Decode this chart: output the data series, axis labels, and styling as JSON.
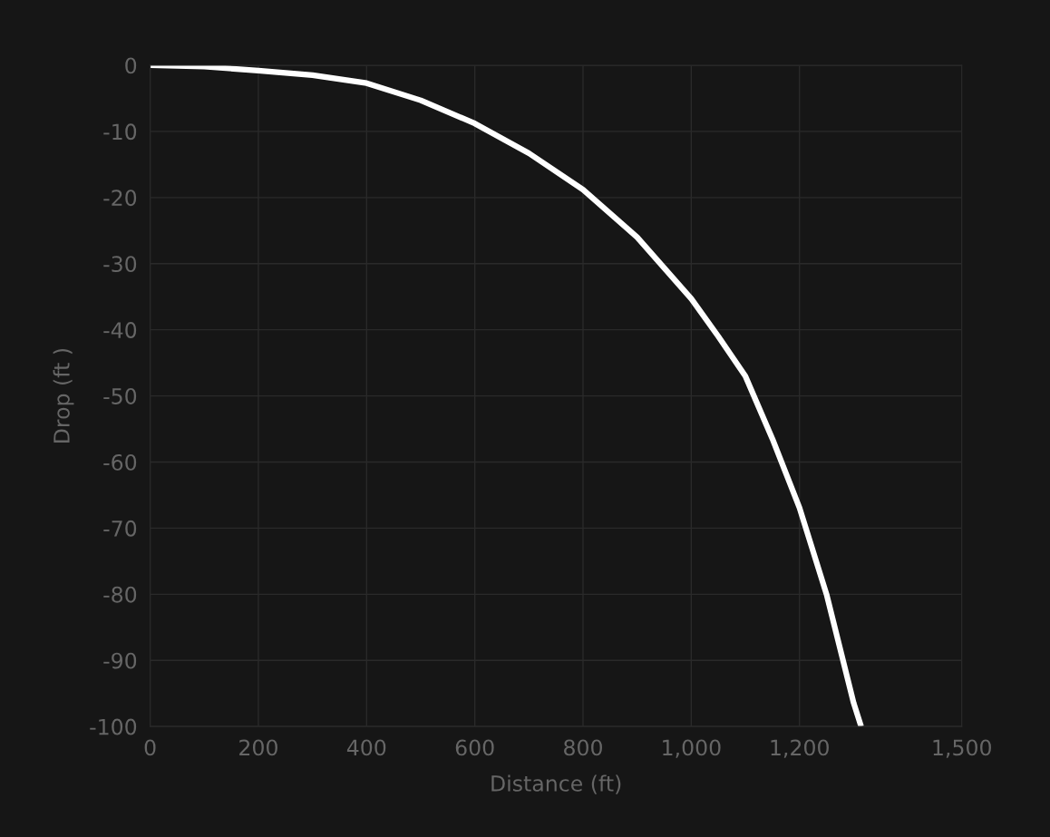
{
  "chart_data": {
    "type": "line",
    "xlabel": "Distance (ft)",
    "ylabel": "Drop (ft )",
    "x": [
      0,
      100,
      200,
      300,
      400,
      500,
      600,
      700,
      800,
      900,
      1000,
      1050,
      1100,
      1150,
      1200,
      1250,
      1300,
      1314
    ],
    "series": [
      {
        "color": "#ffffff",
        "values": [
          0,
          -0.2,
          -0.8,
          -1.5,
          -2.7,
          -5.3,
          -8.8,
          -13.3,
          -18.8,
          -26,
          -35.3,
          -41,
          -47,
          -56.5,
          -66.9,
          -80,
          -96.4,
          -100
        ]
      }
    ],
    "xlim": [
      0,
      1500
    ],
    "ylim": [
      -100,
      0
    ],
    "xticks": [
      0,
      {
        "value": 200,
        "label": "200"
      },
      {
        "value": 400,
        "label": "400"
      },
      {
        "value": 600,
        "label": "600"
      },
      {
        "value": 800,
        "label": "800"
      },
      {
        "value": 1000,
        "label": "1,000"
      },
      {
        "value": 1200,
        "label": "1,200"
      },
      {
        "value": 1500,
        "label": "1,500"
      }
    ],
    "yticks": [
      0,
      -10,
      -20,
      -30,
      -40,
      -50,
      -60,
      -70,
      -80,
      -90,
      -100
    ],
    "grid": true,
    "marker": "none",
    "line_style": "solid"
  }
}
